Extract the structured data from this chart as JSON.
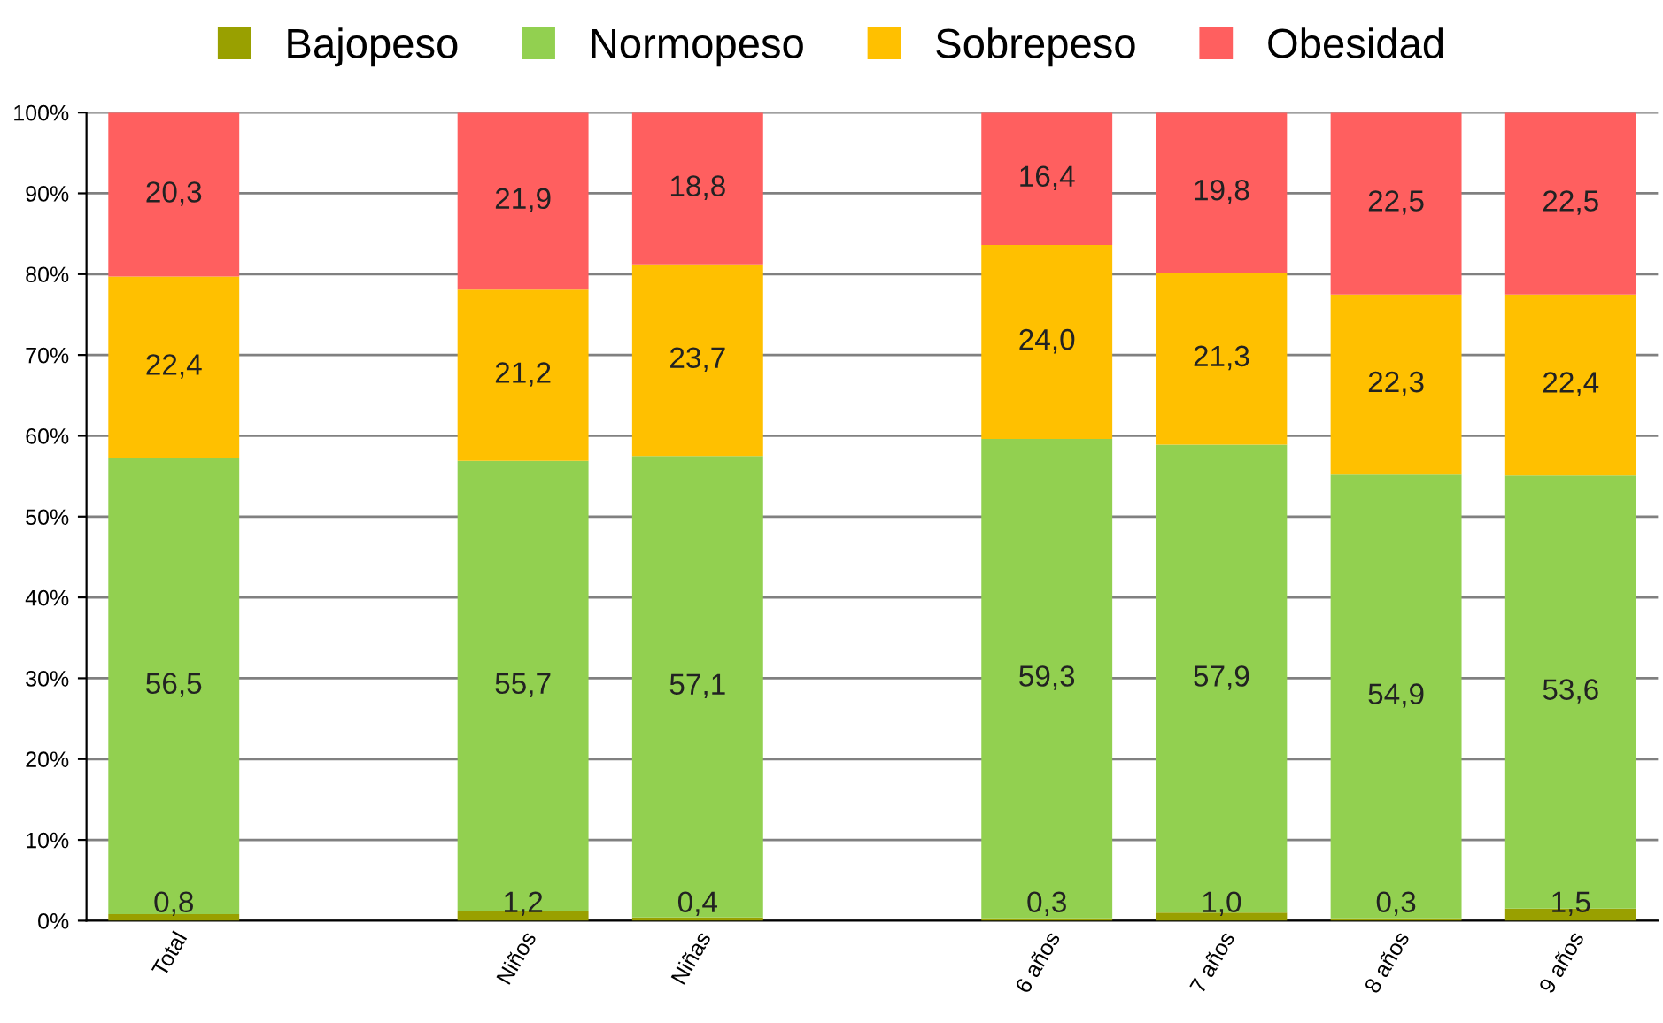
{
  "chart_data": {
    "type": "bar",
    "stacked": true,
    "categories": [
      "Total",
      null,
      "Niños",
      "Niñas",
      null,
      "6 años",
      "7 años",
      "8 años",
      "9 años"
    ],
    "series": [
      {
        "name": "Bajopeso",
        "color": "#99a000",
        "values": [
          0.8,
          null,
          1.2,
          0.4,
          null,
          0.3,
          1.0,
          0.3,
          1.5
        ],
        "value_labels": [
          "0,8",
          null,
          "1,2",
          "0,4",
          null,
          "0,3",
          "1,0",
          "0,3",
          "1,5"
        ]
      },
      {
        "name": "Normopeso",
        "color": "#92d050",
        "values": [
          56.5,
          null,
          55.7,
          57.1,
          null,
          59.3,
          57.9,
          54.9,
          53.6
        ],
        "value_labels": [
          "56,5",
          null,
          "55,7",
          "57,1",
          null,
          "59,3",
          "57,9",
          "54,9",
          "53,6"
        ]
      },
      {
        "name": "Sobrepeso",
        "color": "#ffc000",
        "values": [
          22.4,
          null,
          21.2,
          23.7,
          null,
          24.0,
          21.3,
          22.3,
          22.4
        ],
        "value_labels": [
          "22,4",
          null,
          "21,2",
          "23,7",
          null,
          "24,0",
          "21,3",
          "22,3",
          "22,4"
        ]
      },
      {
        "name": "Obesidad",
        "color": "#ff5f5f",
        "values": [
          20.3,
          null,
          21.9,
          18.8,
          null,
          16.4,
          19.8,
          22.5,
          22.5
        ],
        "value_labels": [
          "20,3",
          null,
          "21,9",
          "18,8",
          null,
          "16,4",
          "19,8",
          "22,5",
          "22,5"
        ]
      }
    ],
    "ylim": [
      0,
      100
    ],
    "yticks": [
      {
        "value": 0,
        "label": "0%"
      },
      {
        "value": 10,
        "label": "10%"
      },
      {
        "value": 20,
        "label": "20%"
      },
      {
        "value": 30,
        "label": "30%"
      },
      {
        "value": 40,
        "label": "40%"
      },
      {
        "value": 50,
        "label": "50%"
      },
      {
        "value": 60,
        "label": "60%"
      },
      {
        "value": 70,
        "label": "70%"
      },
      {
        "value": 80,
        "label": "80%"
      },
      {
        "value": 90,
        "label": "90%"
      },
      {
        "value": 100,
        "label": "100%"
      }
    ],
    "grid": "y",
    "legend": "top"
  }
}
